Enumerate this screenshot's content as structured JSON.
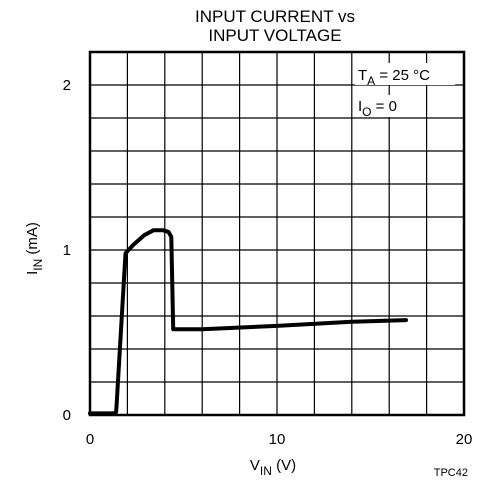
{
  "chart_data": {
    "type": "line",
    "title_lines": [
      "INPUT CURRENT vs",
      "INPUT VOLTAGE"
    ],
    "xlabel": {
      "main": "V",
      "sub": "IN",
      "unit": " (V)"
    },
    "ylabel": {
      "main": "I",
      "sub": "IN",
      "unit": " (mA)"
    },
    "xlim": [
      0,
      20
    ],
    "ylim": [
      0,
      2.2
    ],
    "x_grid_divisions": 10,
    "y_grid_divisions": 11,
    "x_ticks": [
      {
        "value": 0,
        "label": "0"
      },
      {
        "value": 10,
        "label": "10"
      },
      {
        "value": 20,
        "label": "20"
      }
    ],
    "y_ticks": [
      {
        "value": 0,
        "label": "0"
      },
      {
        "value": 1,
        "label": "1"
      },
      {
        "value": 2,
        "label": "2"
      }
    ],
    "grid": true,
    "annotations": [
      {
        "main": "T",
        "sub": "A",
        "rest": " = 25 °C"
      },
      {
        "main": "I",
        "sub": "O",
        "rest": " = 0"
      }
    ],
    "figure_code": "TPC42",
    "series": [
      {
        "points": [
          [
            0,
            0.01
          ],
          [
            1.3,
            0.01
          ],
          [
            1.4,
            0.02
          ],
          [
            1.9,
            0.98
          ],
          [
            2.3,
            1.03
          ],
          [
            2.9,
            1.09
          ],
          [
            3.4,
            1.12
          ],
          [
            3.9,
            1.12
          ],
          [
            4.2,
            1.11
          ],
          [
            4.35,
            1.08
          ],
          [
            4.45,
            0.52
          ],
          [
            6,
            0.52
          ],
          [
            10,
            0.54
          ],
          [
            14,
            0.565
          ],
          [
            16.9,
            0.575
          ]
        ]
      }
    ]
  }
}
